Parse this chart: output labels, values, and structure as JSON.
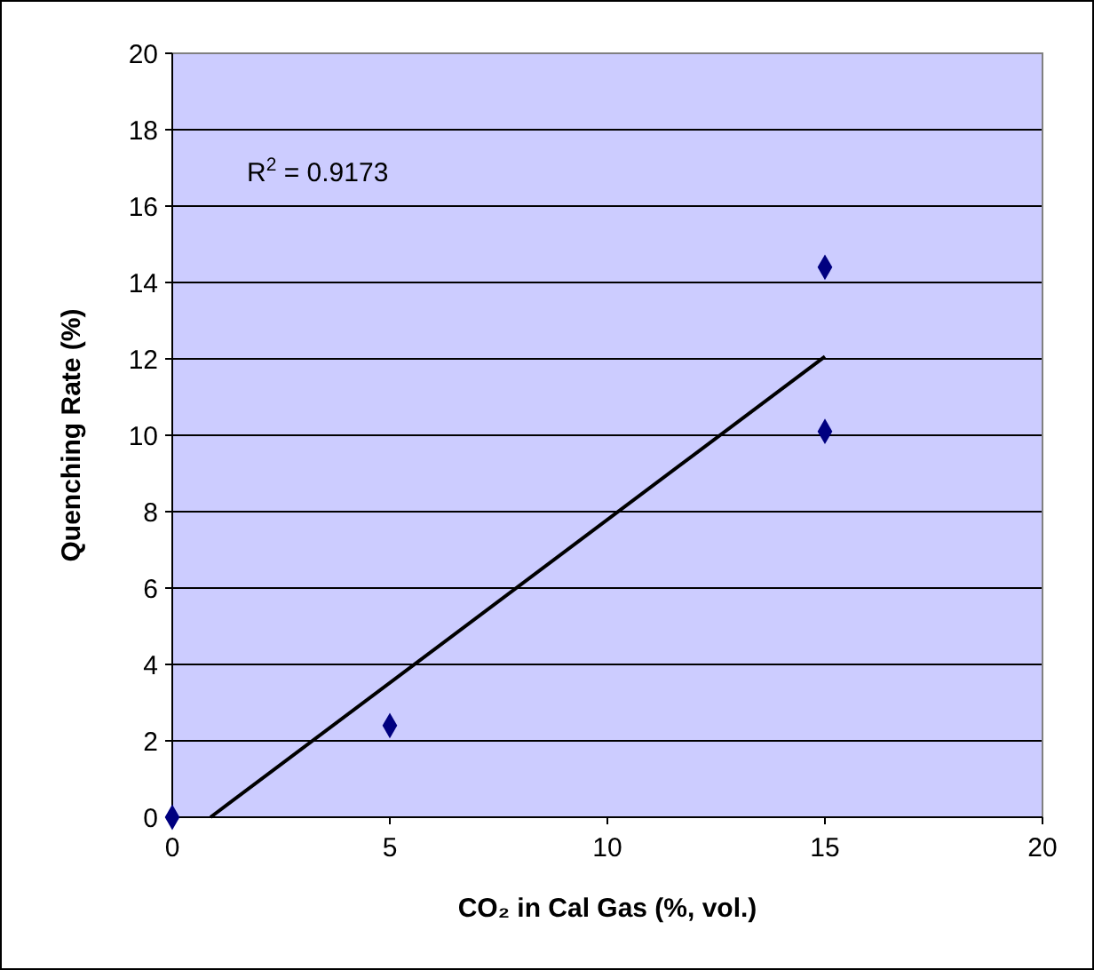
{
  "chart_data": {
    "type": "scatter",
    "xlabel": "CO₂ in Cal Gas (%, vol.)",
    "ylabel": "Quenching Rate (%)",
    "xlim": [
      0,
      20
    ],
    "xticks": [
      0,
      5,
      10,
      15,
      20
    ],
    "ylim": [
      0,
      20
    ],
    "yticks": [
      0,
      2,
      4,
      6,
      8,
      10,
      12,
      14,
      16,
      18,
      20
    ],
    "grid": "y",
    "marker": "diamond",
    "series": [
      {
        "color": "#000080",
        "x": [
          0,
          5,
          15,
          15
        ],
        "values": [
          0,
          2.4,
          14.4,
          10.1
        ]
      },
      {
        "type": "line",
        "color": "#000000",
        "x": [
          0.88,
          15
        ],
        "values": [
          0,
          12.06
        ],
        "marker": "none"
      }
    ],
    "annotations": [
      "R$^{2}$ = 0.9173"
    ]
  }
}
